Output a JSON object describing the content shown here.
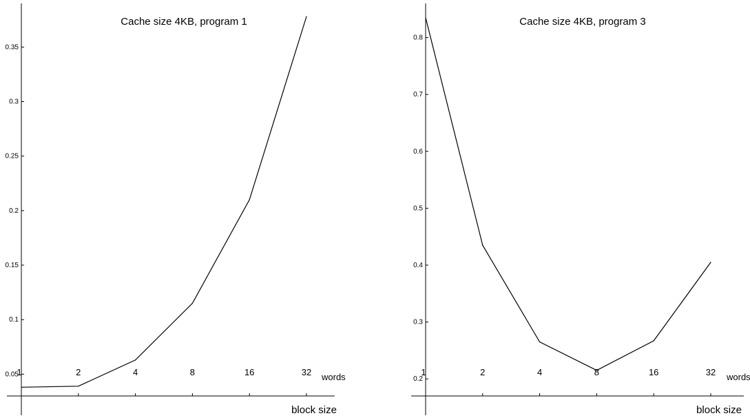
{
  "chart_data": [
    {
      "type": "line",
      "title": "Cache size 4KB, program 1",
      "xlabel": "block size",
      "x_unit_label": "words",
      "categories": [
        "1",
        "2",
        "4",
        "8",
        "16",
        "32"
      ],
      "yticks": [
        "0.05",
        "0.1",
        "0.15",
        "0.2",
        "0.25",
        "0.3",
        "0.35"
      ],
      "ylim": [
        0.03,
        0.39
      ],
      "series": [
        {
          "values": [
            0.038,
            0.039,
            0.063,
            0.115,
            0.21,
            0.378
          ]
        }
      ],
      "grid": false,
      "line_color": "#000000"
    },
    {
      "type": "line",
      "title": "Cache size 4KB, program 3",
      "xlabel": "block size",
      "x_unit_label": "words",
      "categories": [
        "1",
        "2",
        "4",
        "8",
        "16",
        "32"
      ],
      "yticks": [
        "0.2",
        "0.3",
        "0.4",
        "0.5",
        "0.6",
        "0.7",
        "0.8"
      ],
      "ylim": [
        0.17,
        0.86
      ],
      "series": [
        {
          "values": [
            0.835,
            0.435,
            0.265,
            0.215,
            0.267,
            0.405
          ]
        }
      ],
      "grid": false,
      "line_color": "#000000"
    }
  ]
}
